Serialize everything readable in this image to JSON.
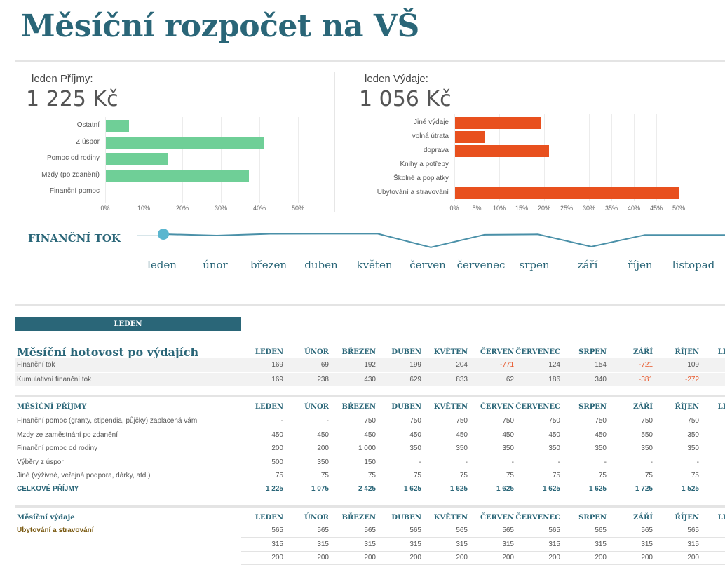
{
  "title": "Měsíční rozpočet na VŠ",
  "income_summary": {
    "label": "leden Příjmy:",
    "value": "1 225 Kč"
  },
  "expense_summary": {
    "label": "leden Výdaje:",
    "value": "1 056 Kč"
  },
  "chart_data": [
    {
      "type": "bar",
      "orientation": "horizontal",
      "categories": [
        "Ostatní",
        "Z úspor",
        "Pomoc od rodiny",
        "Mzdy (po zdanění)",
        "Finanční pomoc"
      ],
      "values": [
        6,
        41,
        16,
        37,
        0
      ],
      "xlim": [
        0,
        50
      ],
      "ticks": [
        "0%",
        "10%",
        "20%",
        "30%",
        "40%",
        "50%"
      ],
      "color": "#6fcf97"
    },
    {
      "type": "bar",
      "orientation": "horizontal",
      "categories": [
        "Jiné výdaje",
        "volná útrata",
        "doprava",
        "Knihy a potřeby",
        "Školné a poplatky",
        "Ubytování a stravování"
      ],
      "values": [
        19,
        6.5,
        21,
        0,
        0,
        50
      ],
      "xlim": [
        0,
        50
      ],
      "ticks": [
        "0%",
        "5%",
        "10%",
        "15%",
        "20%",
        "25%",
        "30%",
        "35%",
        "40%",
        "45%",
        "50%"
      ],
      "color": "#e8501e"
    },
    {
      "type": "line",
      "categories": [
        "leden",
        "únor",
        "březen",
        "duben",
        "květen",
        "červen",
        "červenec",
        "srpen",
        "září",
        "říjen",
        "listopad"
      ],
      "values": [
        169,
        69,
        192,
        199,
        204,
        -771,
        124,
        154,
        -721,
        109,
        109
      ],
      "color": "#4a90a8"
    }
  ],
  "flow": {
    "title": "FINANČNÍ TOK"
  },
  "tab_label": "LEDEN",
  "months": [
    "LEDEN",
    "ÚNOR",
    "BŘEZEN",
    "DUBEN",
    "KVĚTEN",
    "ČERVEN",
    "ČERVENEC",
    "SRPEN",
    "ZÁŘÍ",
    "ŘÍJEN",
    "LIST"
  ],
  "cash_section": {
    "title": "Měsíční hotovost po výdajích",
    "rows": [
      {
        "label": "Finanční tok",
        "values": [
          "169",
          "69",
          "192",
          "199",
          "204",
          "-771",
          "124",
          "154",
          "-721",
          "109"
        ]
      },
      {
        "label": "Kumulativní finanční tok",
        "values": [
          "169",
          "238",
          "430",
          "629",
          "833",
          "62",
          "186",
          "340",
          "-381",
          "-272"
        ]
      }
    ]
  },
  "income_section": {
    "title": "MĚSÍČNÍ PŘÍJMY",
    "rows": [
      {
        "label": "Finanční pomoc (granty, stipendia, půjčky) zaplacená vám",
        "values": [
          "-",
          "-",
          "750",
          "750",
          "750",
          "750",
          "750",
          "750",
          "750",
          "750"
        ]
      },
      {
        "label": "Mzdy ze zaměstnání po zdanění",
        "values": [
          "450",
          "450",
          "450",
          "450",
          "450",
          "450",
          "450",
          "450",
          "550",
          "350"
        ]
      },
      {
        "label": "Finanční pomoc od rodiny",
        "values": [
          "200",
          "200",
          "1 000",
          "350",
          "350",
          "350",
          "350",
          "350",
          "350",
          "350"
        ]
      },
      {
        "label": "Výběry z úspor",
        "values": [
          "500",
          "350",
          "150",
          "-",
          "-",
          "-",
          "-",
          "-",
          "-",
          "-"
        ]
      },
      {
        "label": "Jiné (výživné, veřejná podpora, dárky, atd.)",
        "values": [
          "75",
          "75",
          "75",
          "75",
          "75",
          "75",
          "75",
          "75",
          "75",
          "75"
        ]
      }
    ],
    "total": {
      "label": "CELKOVÉ PŘÍJMY",
      "values": [
        "1 225",
        "1 075",
        "2 425",
        "1 625",
        "1 625",
        "1 625",
        "1 625",
        "1 625",
        "1 725",
        "1 525"
      ]
    }
  },
  "expense_section": {
    "title": "Měsíční výdaje",
    "rows": [
      {
        "label": "Ubytování a stravování",
        "values": [
          "565",
          "565",
          "565",
          "565",
          "565",
          "565",
          "565",
          "565",
          "565",
          "565"
        ]
      },
      {
        "label": "",
        "values": [
          "315",
          "315",
          "315",
          "315",
          "315",
          "315",
          "315",
          "315",
          "315",
          "315"
        ]
      },
      {
        "label": "",
        "values": [
          "200",
          "200",
          "200",
          "200",
          "200",
          "200",
          "200",
          "200",
          "200",
          "200"
        ]
      }
    ]
  }
}
